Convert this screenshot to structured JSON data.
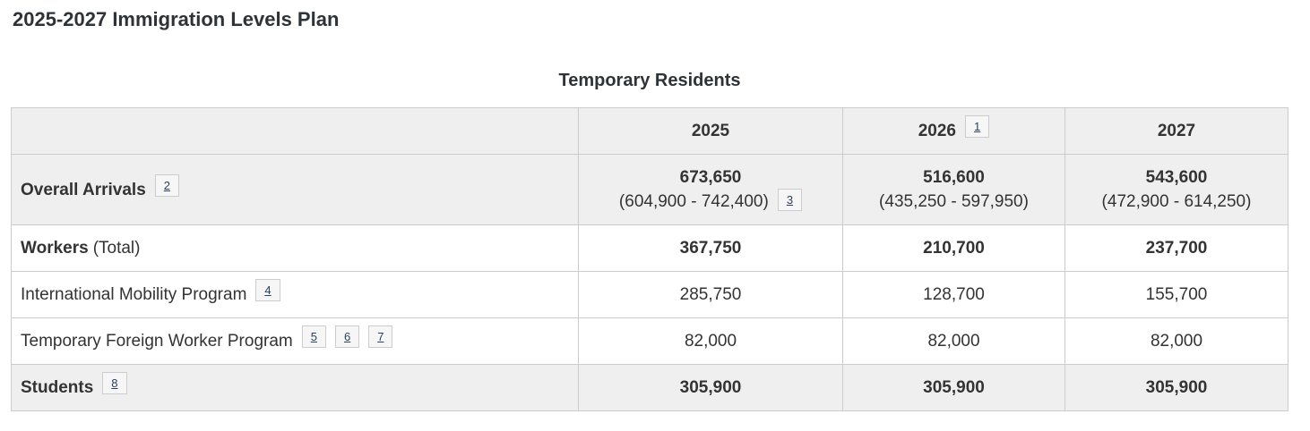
{
  "page_title": "2025-2027 Immigration Levels Plan",
  "table": {
    "caption": "Temporary Residents",
    "header": {
      "y2025": "2025",
      "y2026": "2026",
      "y2026_footnote": "1",
      "y2027": "2027"
    },
    "rows": {
      "overall": {
        "label": "Overall Arrivals",
        "footnote": "2",
        "c2025_main": "673,650",
        "c2025_range": "(604,900 - 742,400)",
        "c2025_range_footnote": "3",
        "c2026_main": "516,600",
        "c2026_range": "(435,250 - 597,950)",
        "c2027_main": "543,600",
        "c2027_range": "(472,900 - 614,250)"
      },
      "workers": {
        "label": "Workers",
        "label_suffix": "(Total)",
        "c2025": "367,750",
        "c2026": "210,700",
        "c2027": "237,700"
      },
      "imp": {
        "label": "International Mobility Program",
        "footnote": "4",
        "c2025": "285,750",
        "c2026": "128,700",
        "c2027": "155,700"
      },
      "tfwp": {
        "label": "Temporary Foreign Worker Program",
        "footnotes": [
          "5",
          "6",
          "7"
        ],
        "c2025": "82,000",
        "c2026": "82,000",
        "c2027": "82,000"
      },
      "students": {
        "label": "Students",
        "footnote": "8",
        "c2025": "305,900",
        "c2026": "305,900",
        "c2027": "305,900"
      }
    }
  },
  "colors": {
    "shaded_row_bg": "#efefef",
    "border": "#cccccc",
    "text": "#333333",
    "footnote_link": "#284162",
    "footnote_box_bg": "#f6f6f6"
  }
}
